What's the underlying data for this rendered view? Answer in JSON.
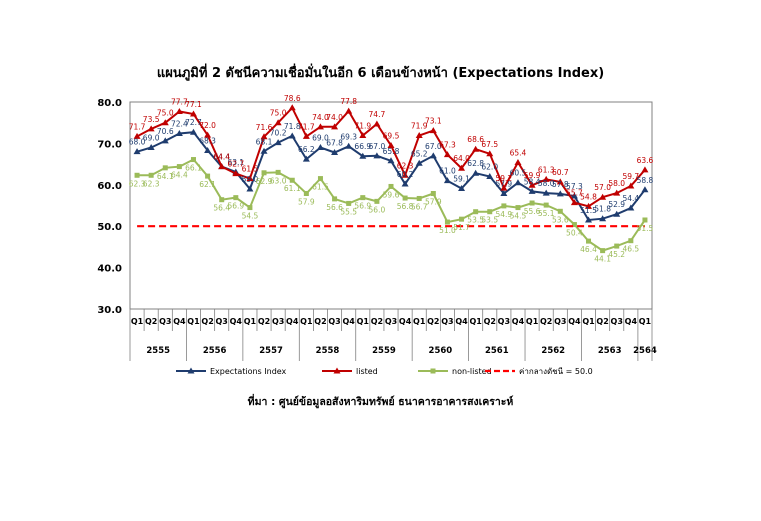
{
  "chart_data": {
    "type": "line",
    "title": "แผนภูมิที่ 2 ดัชนีความเชื่อมั่นในอีก 6 เดือนข้างหน้า (Expectations Index)",
    "source": "ที่มา : ศูนย์ข้อมูลอสังหาริมทรัพย์ ธนาคารอาคารสงเคราะห์",
    "xlabel": "",
    "ylabel": "",
    "ylim": [
      30,
      80
    ],
    "yticks": [
      "30.0",
      "40.0",
      "50.0",
      "60.0",
      "70.0",
      "80.0"
    ],
    "grid": false,
    "legend_position": "bottom",
    "categories": [
      "Q1",
      "Q2",
      "Q3",
      "Q4",
      "Q1",
      "Q2",
      "Q3",
      "Q4",
      "Q1",
      "Q2",
      "Q3",
      "Q4",
      "Q1",
      "Q2",
      "Q3",
      "Q4",
      "Q1",
      "Q2",
      "Q3",
      "Q4",
      "Q1",
      "Q2",
      "Q3",
      "Q4",
      "Q1",
      "Q2",
      "Q3",
      "Q4",
      "Q1",
      "Q2",
      "Q3",
      "Q4",
      "Q1",
      "Q2",
      "Q3",
      "Q4",
      "Q1"
    ],
    "years": [
      {
        "label": "2555",
        "quarters": 4
      },
      {
        "label": "2556",
        "quarters": 4
      },
      {
        "label": "2557",
        "quarters": 4
      },
      {
        "label": "2558",
        "quarters": 4
      },
      {
        "label": "2559",
        "quarters": 4
      },
      {
        "label": "2560",
        "quarters": 4
      },
      {
        "label": "2561",
        "quarters": 4
      },
      {
        "label": "2562",
        "quarters": 4
      },
      {
        "label": "2563",
        "quarters": 4
      },
      {
        "label": "2564",
        "quarters": 1
      }
    ],
    "series": [
      {
        "name": "Expectations Index",
        "color": "#1f3c6e",
        "marker": "triangle",
        "values": [
          68.0,
          69.0,
          70.6,
          72.4,
          72.7,
          68.3,
          64.4,
          63.1,
          59.0,
          68.1,
          70.2,
          71.8,
          66.2,
          69.0,
          67.8,
          69.3,
          66.9,
          67.0,
          65.8,
          60.2,
          65.2,
          67.0,
          61.0,
          59.1,
          62.8,
          62.0,
          57.9,
          60.5,
          58.4,
          58.0,
          57.8,
          57.3,
          51.5,
          51.8,
          52.9,
          54.4,
          58.8
        ]
      },
      {
        "name": "listed",
        "color": "#c00000",
        "marker": "triangle",
        "values": [
          71.7,
          73.5,
          75.0,
          77.7,
          77.1,
          72.0,
          64.4,
          62.7,
          61.5,
          71.6,
          75.0,
          78.6,
          71.7,
          74.0,
          74.0,
          77.8,
          71.9,
          74.7,
          69.5,
          62.3,
          71.9,
          73.1,
          67.3,
          64.0,
          68.6,
          67.5,
          59.2,
          65.4,
          59.9,
          61.3,
          60.7,
          55.7,
          54.8,
          57.0,
          58.0,
          59.7,
          63.6
        ]
      },
      {
        "name": "non-listed",
        "color": "#9bbb59",
        "marker": "square",
        "values": [
          62.3,
          62.3,
          64.1,
          64.4,
          66.1,
          62.1,
          56.4,
          56.9,
          54.5,
          62.9,
          63.0,
          61.1,
          57.9,
          61.5,
          56.6,
          55.5,
          56.9,
          56.0,
          59.6,
          56.8,
          56.7,
          57.9,
          51.0,
          51.7,
          53.5,
          53.5,
          54.9,
          54.5,
          55.6,
          55.1,
          53.6,
          50.4,
          46.4,
          44.1,
          45.2,
          46.5,
          51.5
        ]
      },
      {
        "name": "ค่ากลางดัชนี = 50.0",
        "color": "#ff0000",
        "style": "dashed",
        "values": [
          50.0,
          50.0,
          50.0,
          50.0,
          50.0,
          50.0,
          50.0,
          50.0,
          50.0,
          50.0,
          50.0,
          50.0,
          50.0,
          50.0,
          50.0,
          50.0,
          50.0,
          50.0,
          50.0,
          50.0,
          50.0,
          50.0,
          50.0,
          50.0,
          50.0,
          50.0,
          50.0,
          50.0,
          50.0,
          50.0,
          50.0,
          50.0,
          50.0,
          50.0,
          50.0,
          50.0,
          50.0
        ]
      }
    ]
  }
}
